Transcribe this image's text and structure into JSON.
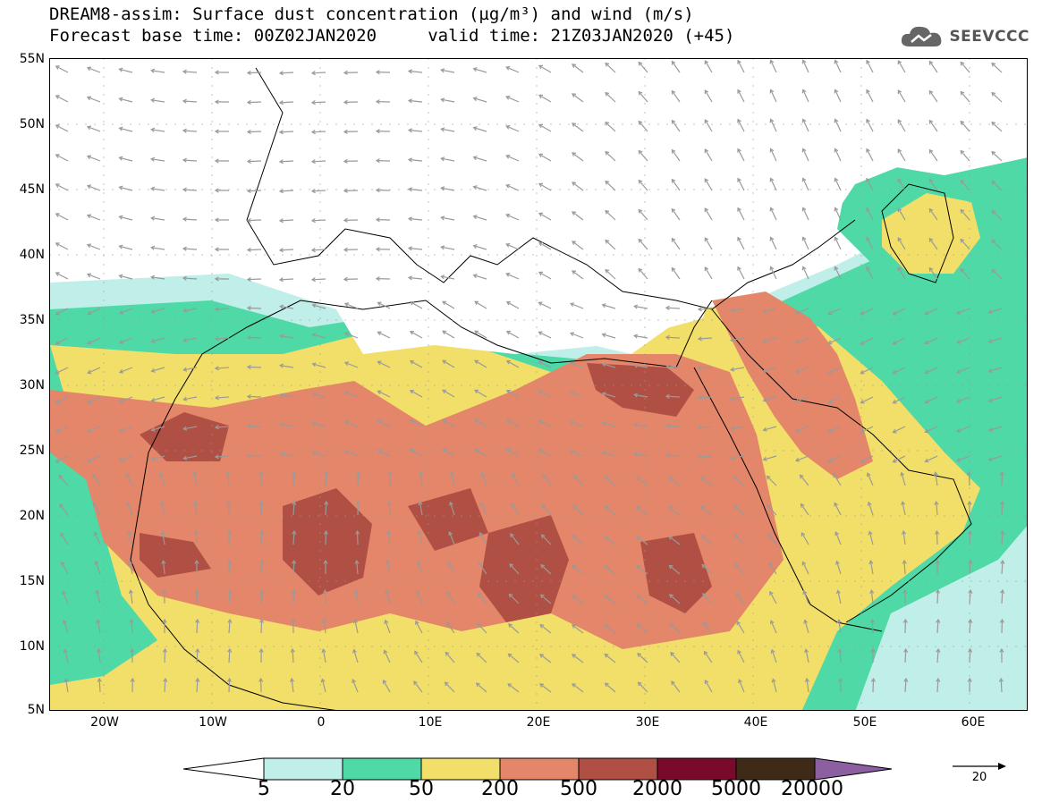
{
  "header": {
    "title_line1": "DREAM8-assim: Surface dust concentration (µg/m³) and wind (m/s)",
    "title_line2": "Forecast base time: 00Z02JAN2020     valid time: 21Z03JAN2020 (+45)"
  },
  "logo": {
    "text": "SEEVCCC",
    "icon": "cloud-icon"
  },
  "axes": {
    "lat_labels": [
      "55N",
      "50N",
      "45N",
      "40N",
      "35N",
      "30N",
      "25N",
      "20N",
      "15N",
      "10N",
      "5N"
    ],
    "lon_labels": [
      "20W",
      "10W",
      "0",
      "10E",
      "20E",
      "30E",
      "40E",
      "50E",
      "60E"
    ]
  },
  "colors": {
    "c5_20": "#bfefe8",
    "c20_50": "#4fd9a6",
    "c50_200": "#f2df6a",
    "c200_500": "#e3866a",
    "c500_2000": "#b04f43",
    "c2000_5000": "#7a0a2a",
    "c5000_20000": "#3e2a17",
    "c20000_plus": "#8c5fa0",
    "wind_vector": "#9a9a9a",
    "coastline": "#000000"
  },
  "colorbar": {
    "labels": [
      "5",
      "20",
      "50",
      "200",
      "500",
      "2000",
      "5000",
      "20000"
    ]
  },
  "reference_vector": {
    "label": "20"
  }
}
